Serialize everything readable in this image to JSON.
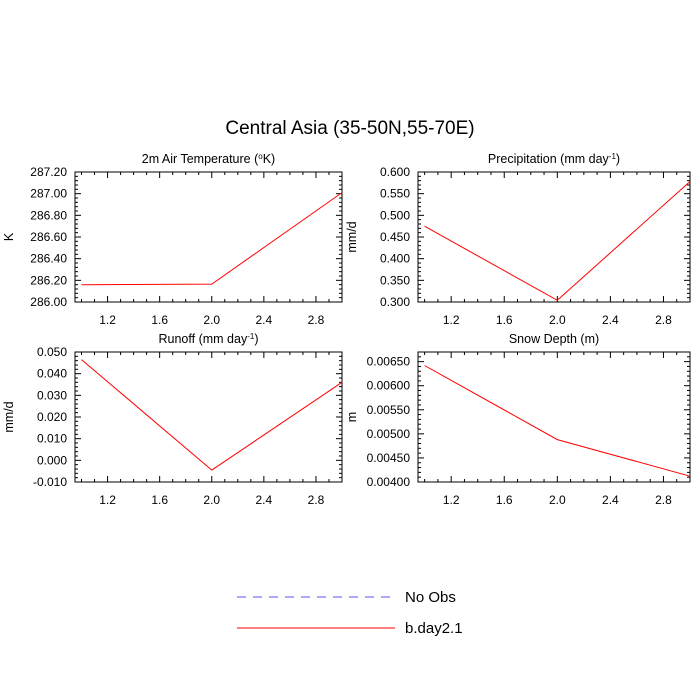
{
  "figure": {
    "title": "Central Asia (35-50N,55-70E)"
  },
  "legend": {
    "placement": "bottom-center",
    "entries": [
      {
        "label": "No Obs",
        "color": "#5555ff",
        "style": "dashed"
      },
      {
        "label": "b.day2.1",
        "color": "#ff0000",
        "style": "solid"
      }
    ]
  },
  "chart_data": [
    {
      "type": "line",
      "title": "2m Air Temperature (°K)",
      "ylabel": "K",
      "xlabel": "",
      "xlim": [
        0.95,
        3.0
      ],
      "ylim": [
        286.0,
        287.2
      ],
      "xticks": [
        "1.2",
        "1.6",
        "2.0",
        "2.4",
        "2.8"
      ],
      "yticks": [
        "286.00",
        "286.20",
        "286.40",
        "286.60",
        "286.80",
        "287.00",
        "287.20"
      ],
      "grid": false,
      "series": [
        {
          "name": "b.day2.1",
          "color": "#ff0000",
          "x": [
            1.0,
            2.0,
            3.0
          ],
          "y": [
            286.16,
            286.165,
            287.01
          ]
        }
      ]
    },
    {
      "type": "line",
      "title": "Precipitation (mm day-1)",
      "ylabel": "mm/d",
      "xlabel": "",
      "xlim": [
        0.95,
        3.0
      ],
      "ylim": [
        0.3,
        0.6
      ],
      "xticks": [
        "1.2",
        "1.6",
        "2.0",
        "2.4",
        "2.8"
      ],
      "yticks": [
        "0.300",
        "0.350",
        "0.400",
        "0.450",
        "0.500",
        "0.550",
        "0.600"
      ],
      "grid": false,
      "series": [
        {
          "name": "b.day2.1",
          "color": "#ff0000",
          "x": [
            1.0,
            2.0,
            3.0
          ],
          "y": [
            0.475,
            0.304,
            0.578
          ]
        }
      ]
    },
    {
      "type": "line",
      "title": "Runoff (mm day-1)",
      "ylabel": "mm/d",
      "xlabel": "",
      "xlim": [
        0.95,
        3.0
      ],
      "ylim": [
        -0.01,
        0.05
      ],
      "xticks": [
        "1.2",
        "1.6",
        "2.0",
        "2.4",
        "2.8"
      ],
      "yticks": [
        "-0.010",
        "0.000",
        "0.010",
        "0.020",
        "0.030",
        "0.040",
        "0.050"
      ],
      "grid": false,
      "series": [
        {
          "name": "b.day2.1",
          "color": "#ff0000",
          "x": [
            1.0,
            2.0,
            3.0
          ],
          "y": [
            0.0465,
            -0.0045,
            0.036
          ]
        }
      ]
    },
    {
      "type": "line",
      "title": "Snow Depth (m)",
      "ylabel": "m",
      "xlabel": "",
      "xlim": [
        0.95,
        3.0
      ],
      "ylim": [
        0.004,
        0.0067
      ],
      "xticks": [
        "1.2",
        "1.6",
        "2.0",
        "2.4",
        "2.8"
      ],
      "yticks": [
        "0.00400",
        "0.00450",
        "0.00500",
        "0.00550",
        "0.00600",
        "0.00650"
      ],
      "grid": false,
      "series": [
        {
          "name": "b.day2.1",
          "color": "#ff0000",
          "x": [
            1.0,
            2.0,
            3.0
          ],
          "y": [
            0.00642,
            0.00488,
            0.00412
          ]
        }
      ]
    }
  ]
}
